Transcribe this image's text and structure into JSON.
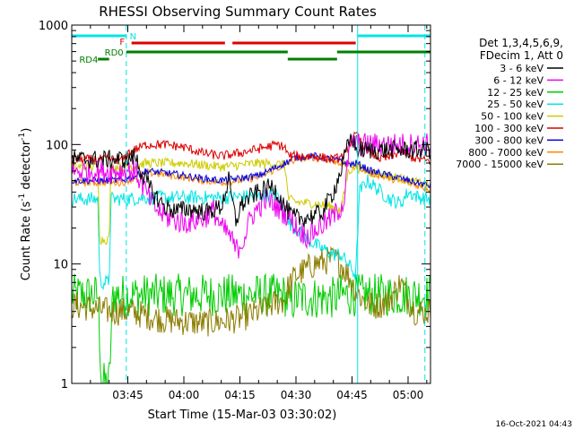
{
  "chart_data": {
    "type": "line",
    "title": "RHESSI Observing Summary Count Rates",
    "xlabel": "Start Time (15-Mar-03 03:30:02)",
    "ylabel_main": "Count Rate (s",
    "ylabel_sup1": "-1",
    "ylabel_mid": " detector",
    "ylabel_sup2": "-1",
    "ylabel_end": ")",
    "y_scale": "log",
    "ylim": [
      1,
      1000
    ],
    "xlim_minutes": [
      0,
      96
    ],
    "x_ticks": [
      {
        "label": "03:45",
        "minutes": 15
      },
      {
        "label": "04:00",
        "minutes": 30
      },
      {
        "label": "04:15",
        "minutes": 45
      },
      {
        "label": "04:30",
        "minutes": 60
      },
      {
        "label": "04:45",
        "minutes": 75
      },
      {
        "label": "05:00",
        "minutes": 90
      }
    ],
    "y_ticks": [
      {
        "label": "1",
        "value": 1
      },
      {
        "label": "10",
        "value": 10
      },
      {
        "label": "100",
        "value": 100
      },
      {
        "label": "1000",
        "value": 1000
      }
    ],
    "legend_header": [
      "Det 1,3,4,5,6,9,",
      "FDecim 1, Att 0"
    ],
    "legend_position": "right",
    "timestamp": "16-Oct-2021 04:43",
    "flags": [
      {
        "label": "N",
        "color": "#00e5e5",
        "segments": [
          [
            0,
            14.6
          ],
          [
            76.5,
            96
          ]
        ]
      },
      {
        "label": "F",
        "color": "#dd0000",
        "segments": [
          [
            16,
            41
          ],
          [
            43,
            76
          ]
        ]
      },
      {
        "label": "RD0",
        "color": "#008000",
        "segments": [
          [
            14.6,
            57.8
          ],
          [
            71,
            96
          ]
        ]
      },
      {
        "label": "RD4",
        "color": "#008000",
        "segments": [
          [
            7,
            10
          ],
          [
            57.8,
            71
          ]
        ]
      }
    ],
    "vlines": [
      {
        "minutes": 14.6,
        "color": "#00e5e5",
        "style": "dashed"
      },
      {
        "minutes": 76.5,
        "color": "#00e5e5",
        "style": "solid"
      },
      {
        "minutes": 94.5,
        "color": "#00e5e5",
        "style": "dashed"
      }
    ],
    "series": [
      {
        "name": "3 - 6 keV",
        "color": "#000000",
        "x": [
          0,
          14,
          15,
          17,
          19,
          22,
          25,
          28,
          32,
          36,
          40,
          42,
          44,
          45,
          47,
          50,
          54,
          57,
          59,
          61,
          64,
          67,
          70,
          72,
          74,
          75,
          76
        ],
        "y": [
          75,
          75,
          75,
          80,
          55,
          38,
          30,
          28,
          29,
          27,
          30,
          50,
          22,
          30,
          35,
          40,
          45,
          30,
          25,
          24,
          25,
          27,
          40,
          60,
          100,
          120,
          90
        ],
        "noise": 0.08
      },
      {
        "name": "6 - 12 keV",
        "color": "#ee00ee",
        "x": [
          0,
          14,
          15,
          17,
          19,
          22,
          25,
          30,
          35,
          38,
          40,
          42,
          44,
          46,
          48,
          52,
          55,
          58,
          61,
          63,
          66,
          70,
          72,
          73,
          74,
          75,
          76
        ],
        "y": [
          60,
          60,
          60,
          60,
          45,
          30,
          25,
          22,
          24,
          28,
          20,
          18,
          13,
          16,
          25,
          35,
          30,
          25,
          19,
          17,
          20,
          25,
          30,
          35,
          80,
          110,
          100
        ],
        "noise": 0.1
      },
      {
        "name": "12 - 25 keV",
        "color": "#00cc00",
        "x": [
          0,
          5,
          7,
          8,
          10,
          11,
          12,
          15,
          20,
          30,
          40,
          50,
          57,
          58,
          60,
          70,
          72,
          96
        ],
        "y": [
          5.5,
          5.5,
          5.5,
          1,
          1,
          5.5,
          5.5,
          5.5,
          5.5,
          5.5,
          5.5,
          5.5,
          5.5,
          4.5,
          5.2,
          5.2,
          5.5,
          5.5
        ],
        "noise": 0.18
      },
      {
        "name": "25 - 50 keV",
        "color": "#00e5e5",
        "x": [
          0,
          7,
          7.5,
          8,
          9,
          10,
          10.5,
          11,
          14,
          15,
          20,
          30,
          40,
          50,
          55,
          58,
          60,
          63,
          66,
          70,
          72,
          74,
          76,
          77,
          79,
          82,
          85,
          88,
          90,
          93,
          96
        ],
        "y": [
          35,
          35,
          7,
          7,
          7,
          7,
          35,
          35,
          35,
          35,
          36,
          36,
          36,
          37,
          38,
          22,
          20,
          16,
          14,
          12,
          12,
          10,
          8,
          40,
          50,
          42,
          35,
          32,
          40,
          36,
          35
        ],
        "noise": 0.06
      },
      {
        "name": "50 - 100 keV",
        "color": "#cccc00",
        "x": [
          0,
          7,
          7.5,
          10,
          10.5,
          14,
          15,
          20,
          30,
          40,
          50,
          57,
          58,
          60,
          65,
          70,
          72,
          74,
          76,
          80,
          85,
          90,
          96
        ],
        "y": [
          65,
          65,
          16,
          16,
          65,
          65,
          65,
          70,
          70,
          65,
          70,
          68,
          35,
          33,
          32,
          30,
          28,
          60,
          65,
          58,
          55,
          50,
          45
        ],
        "noise": 0.04
      },
      {
        "name": "100 - 300 keV",
        "color": "#dd0000",
        "x": [
          0,
          10,
          14,
          15,
          20,
          25,
          30,
          35,
          40,
          45,
          50,
          55,
          57,
          58,
          60,
          65,
          70,
          73,
          75,
          76,
          78,
          80,
          83,
          86,
          88,
          90,
          93,
          96
        ],
        "y": [
          75,
          75,
          75,
          85,
          100,
          100,
          95,
          85,
          80,
          85,
          92,
          100,
          95,
          80,
          80,
          80,
          75,
          80,
          110,
          120,
          100,
          85,
          75,
          80,
          90,
          80,
          75,
          72
        ],
        "noise": 0.04
      },
      {
        "name": "300 - 800 keV",
        "color": "#0000dd",
        "x": [
          0,
          10,
          14,
          15,
          20,
          25,
          30,
          35,
          40,
          45,
          50,
          55,
          60,
          65,
          70,
          75,
          76,
          78,
          80,
          85,
          90,
          96
        ],
        "y": [
          50,
          50,
          50,
          52,
          60,
          58,
          55,
          52,
          50,
          52,
          55,
          65,
          78,
          80,
          75,
          68,
          70,
          65,
          60,
          55,
          50,
          45
        ],
        "noise": 0.03
      },
      {
        "name": "800 - 7000 keV",
        "color": "#ff8800",
        "x": [
          0,
          10,
          14,
          15,
          20,
          25,
          30,
          35,
          40,
          45,
          50,
          55,
          60,
          65,
          70,
          75,
          76,
          78,
          80,
          85,
          90,
          96
        ],
        "y": [
          48,
          48,
          48,
          50,
          58,
          56,
          53,
          50,
          48,
          50,
          53,
          63,
          75,
          78,
          73,
          66,
          68,
          62,
          58,
          52,
          48,
          42
        ],
        "noise": 0.03
      },
      {
        "name": "7000 - 15000 keV",
        "color": "#8b7d00",
        "x": [
          0,
          5,
          10,
          15,
          20,
          25,
          30,
          35,
          40,
          45,
          50,
          55,
          57,
          58,
          60,
          65,
          70,
          72,
          74,
          76,
          78,
          80,
          82,
          85,
          88,
          90,
          92,
          94,
          96
        ],
        "y": [
          4.5,
          4.3,
          4.0,
          4.0,
          3.7,
          3.4,
          3.3,
          3.2,
          3.3,
          3.5,
          4.0,
          4.8,
          5.0,
          6.5,
          8,
          10,
          11,
          10,
          8,
          6,
          5,
          4.5,
          4.5,
          5,
          7,
          5,
          4,
          4,
          4
        ],
        "noise": 0.12
      }
    ]
  }
}
